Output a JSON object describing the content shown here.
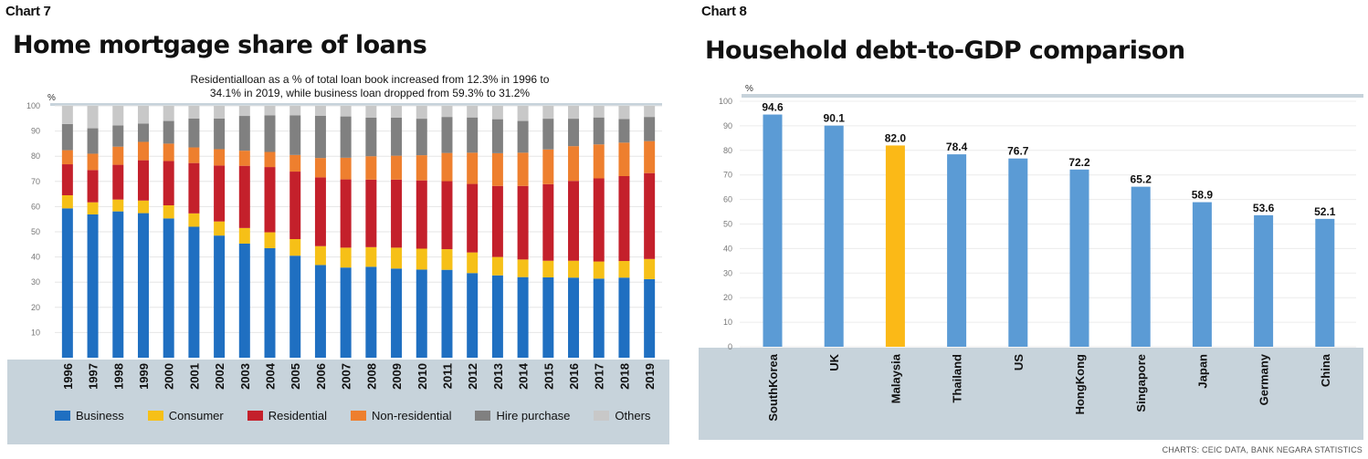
{
  "chart7": {
    "tag": "Chart 7",
    "title": "Home mortgage share of loans",
    "subtitle_line1": "Residentialloan as a % of total loan book increased from 12.3% in 1996 to",
    "subtitle_line2": "34.1% in 2019, while business loan dropped from 59.3% to 31.2%",
    "y_unit": "%"
  },
  "chart8": {
    "tag": "Chart 8",
    "title": "Household debt-to-GDP comparison",
    "y_unit": "%",
    "source": "CHARTS: CEIC DATA, BANK NEGARA STATISTICS"
  },
  "chart_data": [
    {
      "type": "bar",
      "stacked": true,
      "title": "Home mortgage share of loans",
      "ylabel": "%",
      "ylim": [
        0,
        100
      ],
      "yticks": [
        10,
        20,
        30,
        40,
        50,
        60,
        70,
        80,
        90,
        100
      ],
      "categories": [
        "1996",
        "1997",
        "1998",
        "1999",
        "2000",
        "2001",
        "2002",
        "2003",
        "2004",
        "2005",
        "2006",
        "2007",
        "2008",
        "2009",
        "2010",
        "2011",
        "2012",
        "2013",
        "2014",
        "2015",
        "2016",
        "2017",
        "2018",
        "2019"
      ],
      "legend_position": "bottom",
      "series": [
        {
          "name": "Business",
          "color": "#1f6fc1",
          "values": [
            59.3,
            56.9,
            58.1,
            57.4,
            55.3,
            52.0,
            48.5,
            45.3,
            43.5,
            40.5,
            36.8,
            35.8,
            36.1,
            35.4,
            35.0,
            34.9,
            33.6,
            32.7,
            32.0,
            31.9,
            31.8,
            31.4,
            31.8,
            31.2
          ]
        },
        {
          "name": "Consumer",
          "color": "#f6c017",
          "values": [
            5.2,
            4.8,
            4.7,
            5.0,
            5.2,
            5.3,
            5.6,
            6.2,
            6.3,
            6.6,
            7.5,
            7.9,
            7.8,
            8.3,
            8.3,
            8.2,
            8.2,
            7.3,
            7.0,
            6.6,
            6.7,
            6.8,
            6.6,
            8.0
          ]
        },
        {
          "name": "Residential",
          "color": "#c4202b",
          "values": [
            12.3,
            12.8,
            13.8,
            16.0,
            17.6,
            20.0,
            22.2,
            24.7,
            25.9,
            26.8,
            27.3,
            27.1,
            26.8,
            27.0,
            27.1,
            27.0,
            27.2,
            28.2,
            29.2,
            30.4,
            31.7,
            33.0,
            33.7,
            34.1
          ]
        },
        {
          "name": "Non-residential",
          "color": "#ee7f2e",
          "values": [
            5.6,
            6.5,
            7.2,
            7.3,
            6.9,
            6.2,
            6.5,
            6.0,
            6.0,
            6.6,
            7.7,
            8.6,
            9.3,
            9.5,
            10.0,
            11.2,
            12.4,
            13.0,
            13.2,
            13.8,
            13.8,
            13.5,
            13.3,
            12.7
          ]
        },
        {
          "name": "Hire purchase",
          "color": "#808080",
          "values": [
            10.4,
            10.1,
            8.4,
            7.3,
            9.0,
            11.5,
            12.2,
            13.8,
            14.5,
            15.7,
            16.8,
            16.4,
            15.3,
            15.1,
            14.5,
            14.3,
            14.0,
            13.5,
            12.6,
            12.2,
            10.9,
            10.7,
            9.4,
            9.6
          ]
        },
        {
          "name": "Others",
          "color": "#c8c8c8",
          "values": [
            7.2,
            8.9,
            7.8,
            7.0,
            6.0,
            5.0,
            5.0,
            4.0,
            3.8,
            3.8,
            3.9,
            4.2,
            4.7,
            4.7,
            5.1,
            4.4,
            4.6,
            5.3,
            6.0,
            5.1,
            5.1,
            4.6,
            5.2,
            4.4
          ]
        }
      ]
    },
    {
      "type": "bar",
      "title": "Household debt-to-GDP comparison",
      "ylabel": "%",
      "ylim": [
        0,
        100
      ],
      "yticks": [
        0,
        10,
        20,
        30,
        40,
        50,
        60,
        70,
        80,
        90,
        100
      ],
      "categories": [
        "SouthKorea",
        "UK",
        "Malaysia",
        "Thailand",
        "US",
        "HongKong",
        "Singapore",
        "Japan",
        "Germany",
        "China"
      ],
      "values": [
        94.6,
        90.1,
        82.0,
        78.4,
        76.7,
        72.2,
        65.2,
        58.9,
        53.6,
        52.1
      ],
      "value_labels": [
        "94.6",
        "90.1",
        "82.0",
        "78.4",
        "76.7",
        "72.2",
        "65.2",
        "58.9",
        "53.6",
        "52.1"
      ],
      "colors": [
        "#5b9bd5",
        "#5b9bd5",
        "#fbb917",
        "#5b9bd5",
        "#5b9bd5",
        "#5b9bd5",
        "#5b9bd5",
        "#5b9bd5",
        "#5b9bd5",
        "#5b9bd5"
      ]
    }
  ]
}
